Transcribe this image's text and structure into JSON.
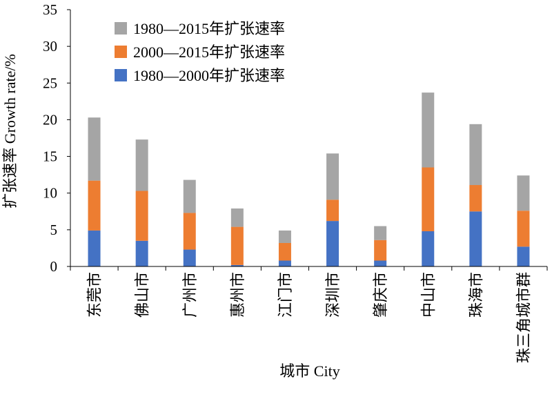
{
  "chart_data": {
    "type": "bar",
    "stacked": true,
    "categories": [
      "东莞市",
      "佛山市",
      "广州市",
      "惠州市",
      "江门市",
      "深圳市",
      "肇庆市",
      "中山市",
      "珠海市",
      "珠三角城市群"
    ],
    "series": [
      {
        "name": "1980—2000年扩张速率",
        "color": "#4472C4",
        "values": [
          4.9,
          3.5,
          2.3,
          0.2,
          0.8,
          6.2,
          0.8,
          4.8,
          7.5,
          2.7
        ]
      },
      {
        "name": "2000—2015年扩张速率",
        "color": "#ED7D31",
        "values": [
          6.8,
          6.8,
          5.0,
          5.2,
          2.4,
          2.9,
          2.8,
          8.7,
          3.6,
          4.9
        ]
      },
      {
        "name": "1980—2015年扩张速率",
        "color": "#A5A5A5",
        "values": [
          8.6,
          7.0,
          4.5,
          2.5,
          1.7,
          6.3,
          1.9,
          10.2,
          8.3,
          4.8
        ]
      }
    ],
    "legend_order": [
      2,
      1,
      0
    ],
    "legend_position": "top-left",
    "xlabel": "城市 City",
    "ylabel": "扩张速率 Growth rate/%",
    "ylim": [
      0,
      35
    ],
    "yticks": [
      "0",
      "5",
      "10",
      "15",
      "20",
      "25",
      "30",
      "35"
    ],
    "grid": false
  }
}
